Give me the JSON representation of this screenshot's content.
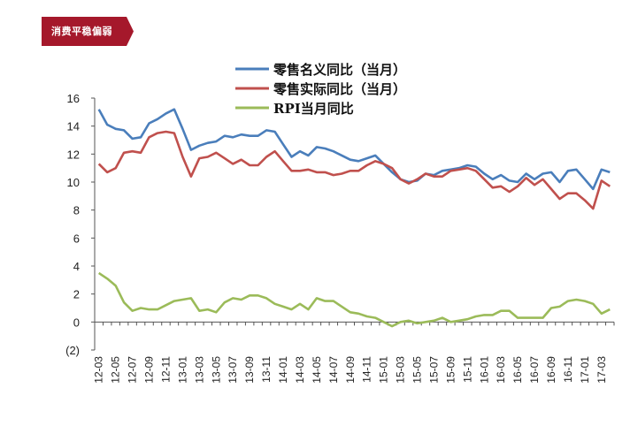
{
  "header": {
    "badge_label": "消费平稳偏弱",
    "badge_color": "#a5182b"
  },
  "chart_data": {
    "type": "line",
    "ylim": [
      -2,
      16
    ],
    "yticks": [
      "16",
      "14",
      "12",
      "10",
      "8",
      "6",
      "4",
      "2",
      "0",
      "(2)"
    ],
    "ytick_values": [
      16,
      14,
      12,
      10,
      8,
      6,
      4,
      2,
      0,
      -2
    ],
    "negative_tick_color": "#c0392b",
    "legend_position": "top-center",
    "grid": false,
    "x": [
      "12-03",
      "12-04",
      "12-05",
      "12-06",
      "12-07",
      "12-08",
      "12-09",
      "12-10",
      "12-11",
      "12-12",
      "13-01",
      "13-02",
      "13-03",
      "13-04",
      "13-05",
      "13-06",
      "13-07",
      "13-08",
      "13-09",
      "13-10",
      "13-11",
      "13-12",
      "14-01",
      "14-02",
      "14-03",
      "14-04",
      "14-05",
      "14-06",
      "14-07",
      "14-08",
      "14-09",
      "14-10",
      "14-11",
      "14-12",
      "15-01",
      "15-02",
      "15-03",
      "15-04",
      "15-05",
      "15-06",
      "15-07",
      "15-08",
      "15-09",
      "15-10",
      "15-11",
      "15-12",
      "16-01",
      "16-02",
      "16-03",
      "16-04",
      "16-05",
      "16-06",
      "16-07",
      "16-08",
      "16-09",
      "16-10",
      "16-11",
      "16-12",
      "17-01",
      "17-02",
      "17-03",
      "17-04"
    ],
    "xtick_labels": [
      "12-03",
      "12-05",
      "12-07",
      "12-09",
      "12-11",
      "13-01",
      "13-03",
      "13-05",
      "13-07",
      "13-09",
      "13-11",
      "14-01",
      "14-03",
      "14-05",
      "14-07",
      "14-09",
      "14-11",
      "15-01",
      "15-03",
      "15-05",
      "15-07",
      "15-09",
      "15-11",
      "16-01",
      "16-03",
      "16-05",
      "16-07",
      "16-09",
      "16-11",
      "17-01",
      "17-03"
    ],
    "series": [
      {
        "name": "零售名义同比（当月）",
        "color": "#4a7ebb",
        "values": [
          15.2,
          14.1,
          13.8,
          13.7,
          13.1,
          13.2,
          14.2,
          14.5,
          14.9,
          15.2,
          13.8,
          12.3,
          12.6,
          12.8,
          12.9,
          13.3,
          13.2,
          13.4,
          13.3,
          13.3,
          13.7,
          13.6,
          12.7,
          11.8,
          12.2,
          11.9,
          12.5,
          12.4,
          12.2,
          11.9,
          11.6,
          11.5,
          11.7,
          11.9,
          11.3,
          10.7,
          10.2,
          10.0,
          10.1,
          10.6,
          10.5,
          10.8,
          10.9,
          11.0,
          11.2,
          11.1,
          10.6,
          10.2,
          10.5,
          10.1,
          10.0,
          10.6,
          10.2,
          10.6,
          10.7,
          10.0,
          10.8,
          10.9,
          10.2,
          9.5,
          10.9,
          10.7
        ]
      },
      {
        "name": "零售实际同比（当月）",
        "color": "#c0504d",
        "values": [
          11.3,
          10.7,
          11.0,
          12.1,
          12.2,
          12.1,
          13.2,
          13.5,
          13.6,
          13.5,
          11.8,
          10.4,
          11.7,
          11.8,
          12.1,
          11.7,
          11.3,
          11.6,
          11.2,
          11.2,
          11.8,
          12.2,
          11.5,
          10.8,
          10.8,
          10.9,
          10.7,
          10.7,
          10.5,
          10.6,
          10.8,
          10.8,
          11.2,
          11.5,
          11.3,
          11.0,
          10.2,
          9.9,
          10.2,
          10.6,
          10.4,
          10.4,
          10.8,
          10.9,
          11.0,
          10.8,
          10.2,
          9.6,
          9.7,
          9.3,
          9.7,
          10.3,
          9.8,
          10.2,
          9.5,
          8.8,
          9.2,
          9.2,
          8.7,
          8.1,
          10.1,
          9.7
        ]
      },
      {
        "name": "RPI当月同比",
        "color": "#9bbb59",
        "values": [
          3.5,
          3.1,
          2.6,
          1.4,
          0.8,
          1.0,
          0.9,
          0.9,
          1.2,
          1.5,
          1.6,
          1.7,
          0.8,
          0.9,
          0.7,
          1.4,
          1.7,
          1.6,
          1.9,
          1.9,
          1.7,
          1.3,
          1.1,
          0.9,
          1.3,
          0.9,
          1.7,
          1.5,
          1.5,
          1.1,
          0.7,
          0.6,
          0.4,
          0.3,
          0.0,
          -0.3,
          0.0,
          0.1,
          -0.1,
          0.0,
          0.1,
          0.3,
          0.0,
          0.1,
          0.2,
          0.4,
          0.5,
          0.5,
          0.8,
          0.8,
          0.3,
          0.3,
          0.3,
          0.3,
          1.0,
          1.1,
          1.5,
          1.6,
          1.5,
          1.3,
          0.6,
          0.9
        ]
      }
    ]
  }
}
